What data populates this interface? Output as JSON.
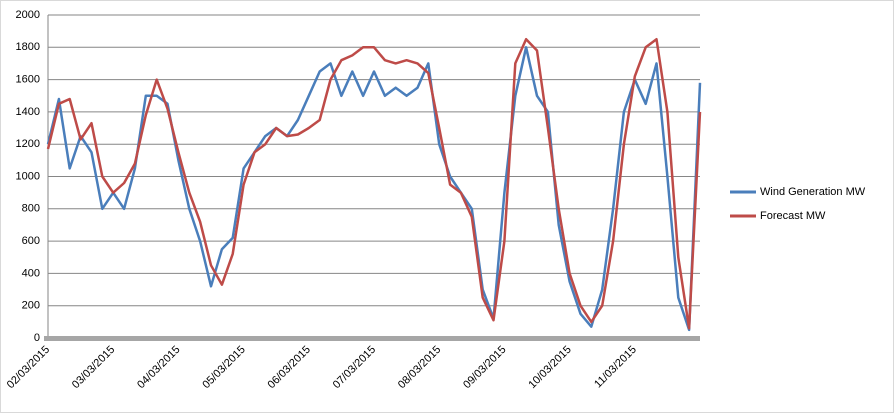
{
  "chart_data": {
    "type": "line",
    "categories": [
      "02/03/2015",
      null,
      null,
      null,
      null,
      null,
      "03/03/2015",
      null,
      null,
      null,
      null,
      null,
      "04/03/2015",
      null,
      null,
      null,
      null,
      null,
      "05/03/2015",
      null,
      null,
      null,
      null,
      null,
      "06/03/2015",
      null,
      null,
      null,
      null,
      null,
      "07/03/2015",
      null,
      null,
      null,
      null,
      null,
      "08/03/2015",
      null,
      null,
      null,
      null,
      null,
      "09/03/2015",
      null,
      null,
      null,
      null,
      null,
      "10/03/2015",
      null,
      null,
      null,
      null,
      null,
      "11/03/2015",
      null,
      null,
      null,
      null,
      null,
      null
    ],
    "series": [
      {
        "name": "Wind Generation MW",
        "color": "#4a7ebb",
        "values": [
          1200,
          1480,
          1050,
          1250,
          1150,
          800,
          900,
          800,
          1050,
          1500,
          1500,
          1450,
          1100,
          800,
          600,
          320,
          550,
          620,
          1050,
          1150,
          1250,
          1300,
          1250,
          1350,
          1500,
          1650,
          1700,
          1500,
          1650,
          1500,
          1650,
          1500,
          1550,
          1500,
          1550,
          1700,
          1200,
          1000,
          900,
          800,
          300,
          120,
          900,
          1500,
          1800,
          1500,
          1400,
          700,
          350,
          150,
          70,
          300,
          800,
          1400,
          1600,
          1450,
          1700,
          1000,
          250,
          50,
          1580
        ]
      },
      {
        "name": "Forecast MW",
        "color": "#be4b48",
        "values": [
          1170,
          1450,
          1480,
          1230,
          1330,
          1000,
          900,
          960,
          1080,
          1380,
          1600,
          1420,
          1150,
          900,
          720,
          450,
          330,
          520,
          950,
          1150,
          1200,
          1300,
          1250,
          1260,
          1300,
          1350,
          1600,
          1720,
          1750,
          1800,
          1800,
          1720,
          1700,
          1720,
          1700,
          1640,
          1300,
          950,
          900,
          750,
          250,
          110,
          600,
          1700,
          1850,
          1780,
          1300,
          800,
          400,
          200,
          100,
          200,
          600,
          1200,
          1620,
          1800,
          1850,
          1400,
          500,
          60,
          1400
        ]
      }
    ],
    "ylim": [
      0,
      2000
    ],
    "yticks": [
      0,
      200,
      400,
      600,
      800,
      1000,
      1200,
      1400,
      1600,
      1800,
      2000
    ],
    "grid": true,
    "legend": "right"
  }
}
